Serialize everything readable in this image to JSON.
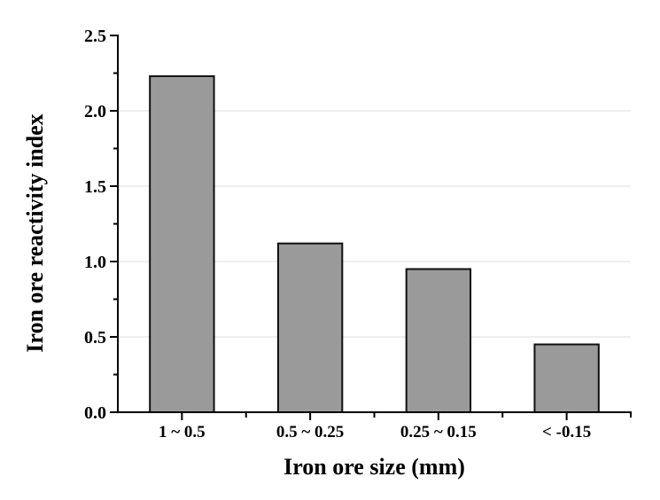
{
  "figure": {
    "background": "#ffffff"
  },
  "chart_data": {
    "type": "bar",
    "title": "",
    "xlabel": "Iron ore size (mm)",
    "ylabel": "Iron ore reactivity index",
    "categories": [
      "1 ~ 0.5",
      "0.5 ~ 0.25",
      "0.25 ~ 0.15",
      "< -0.15"
    ],
    "values": [
      2.23,
      1.12,
      0.95,
      0.45
    ],
    "ylim": [
      0,
      2.5
    ],
    "y_major_ticks": [
      0.0,
      0.5,
      1.0,
      1.5,
      2.0,
      2.5
    ],
    "y_tick_labels": [
      "0.0",
      "0.5",
      "1.0",
      "1.5",
      "2.0",
      "2.5"
    ],
    "y_minor_ticks": [
      0.25,
      0.75,
      1.25,
      1.75,
      2.25
    ],
    "gridlines": {
      "show": true,
      "at": [
        0.5,
        1.0,
        1.5,
        2.0
      ],
      "color": "#e8e8e8"
    },
    "legend": null,
    "bar_width_fraction": 0.5,
    "colors": {
      "bar_fill": "#9a9a9a",
      "bar_border": "#0f0f0f",
      "axis": "#000000",
      "text": "#000000"
    }
  }
}
